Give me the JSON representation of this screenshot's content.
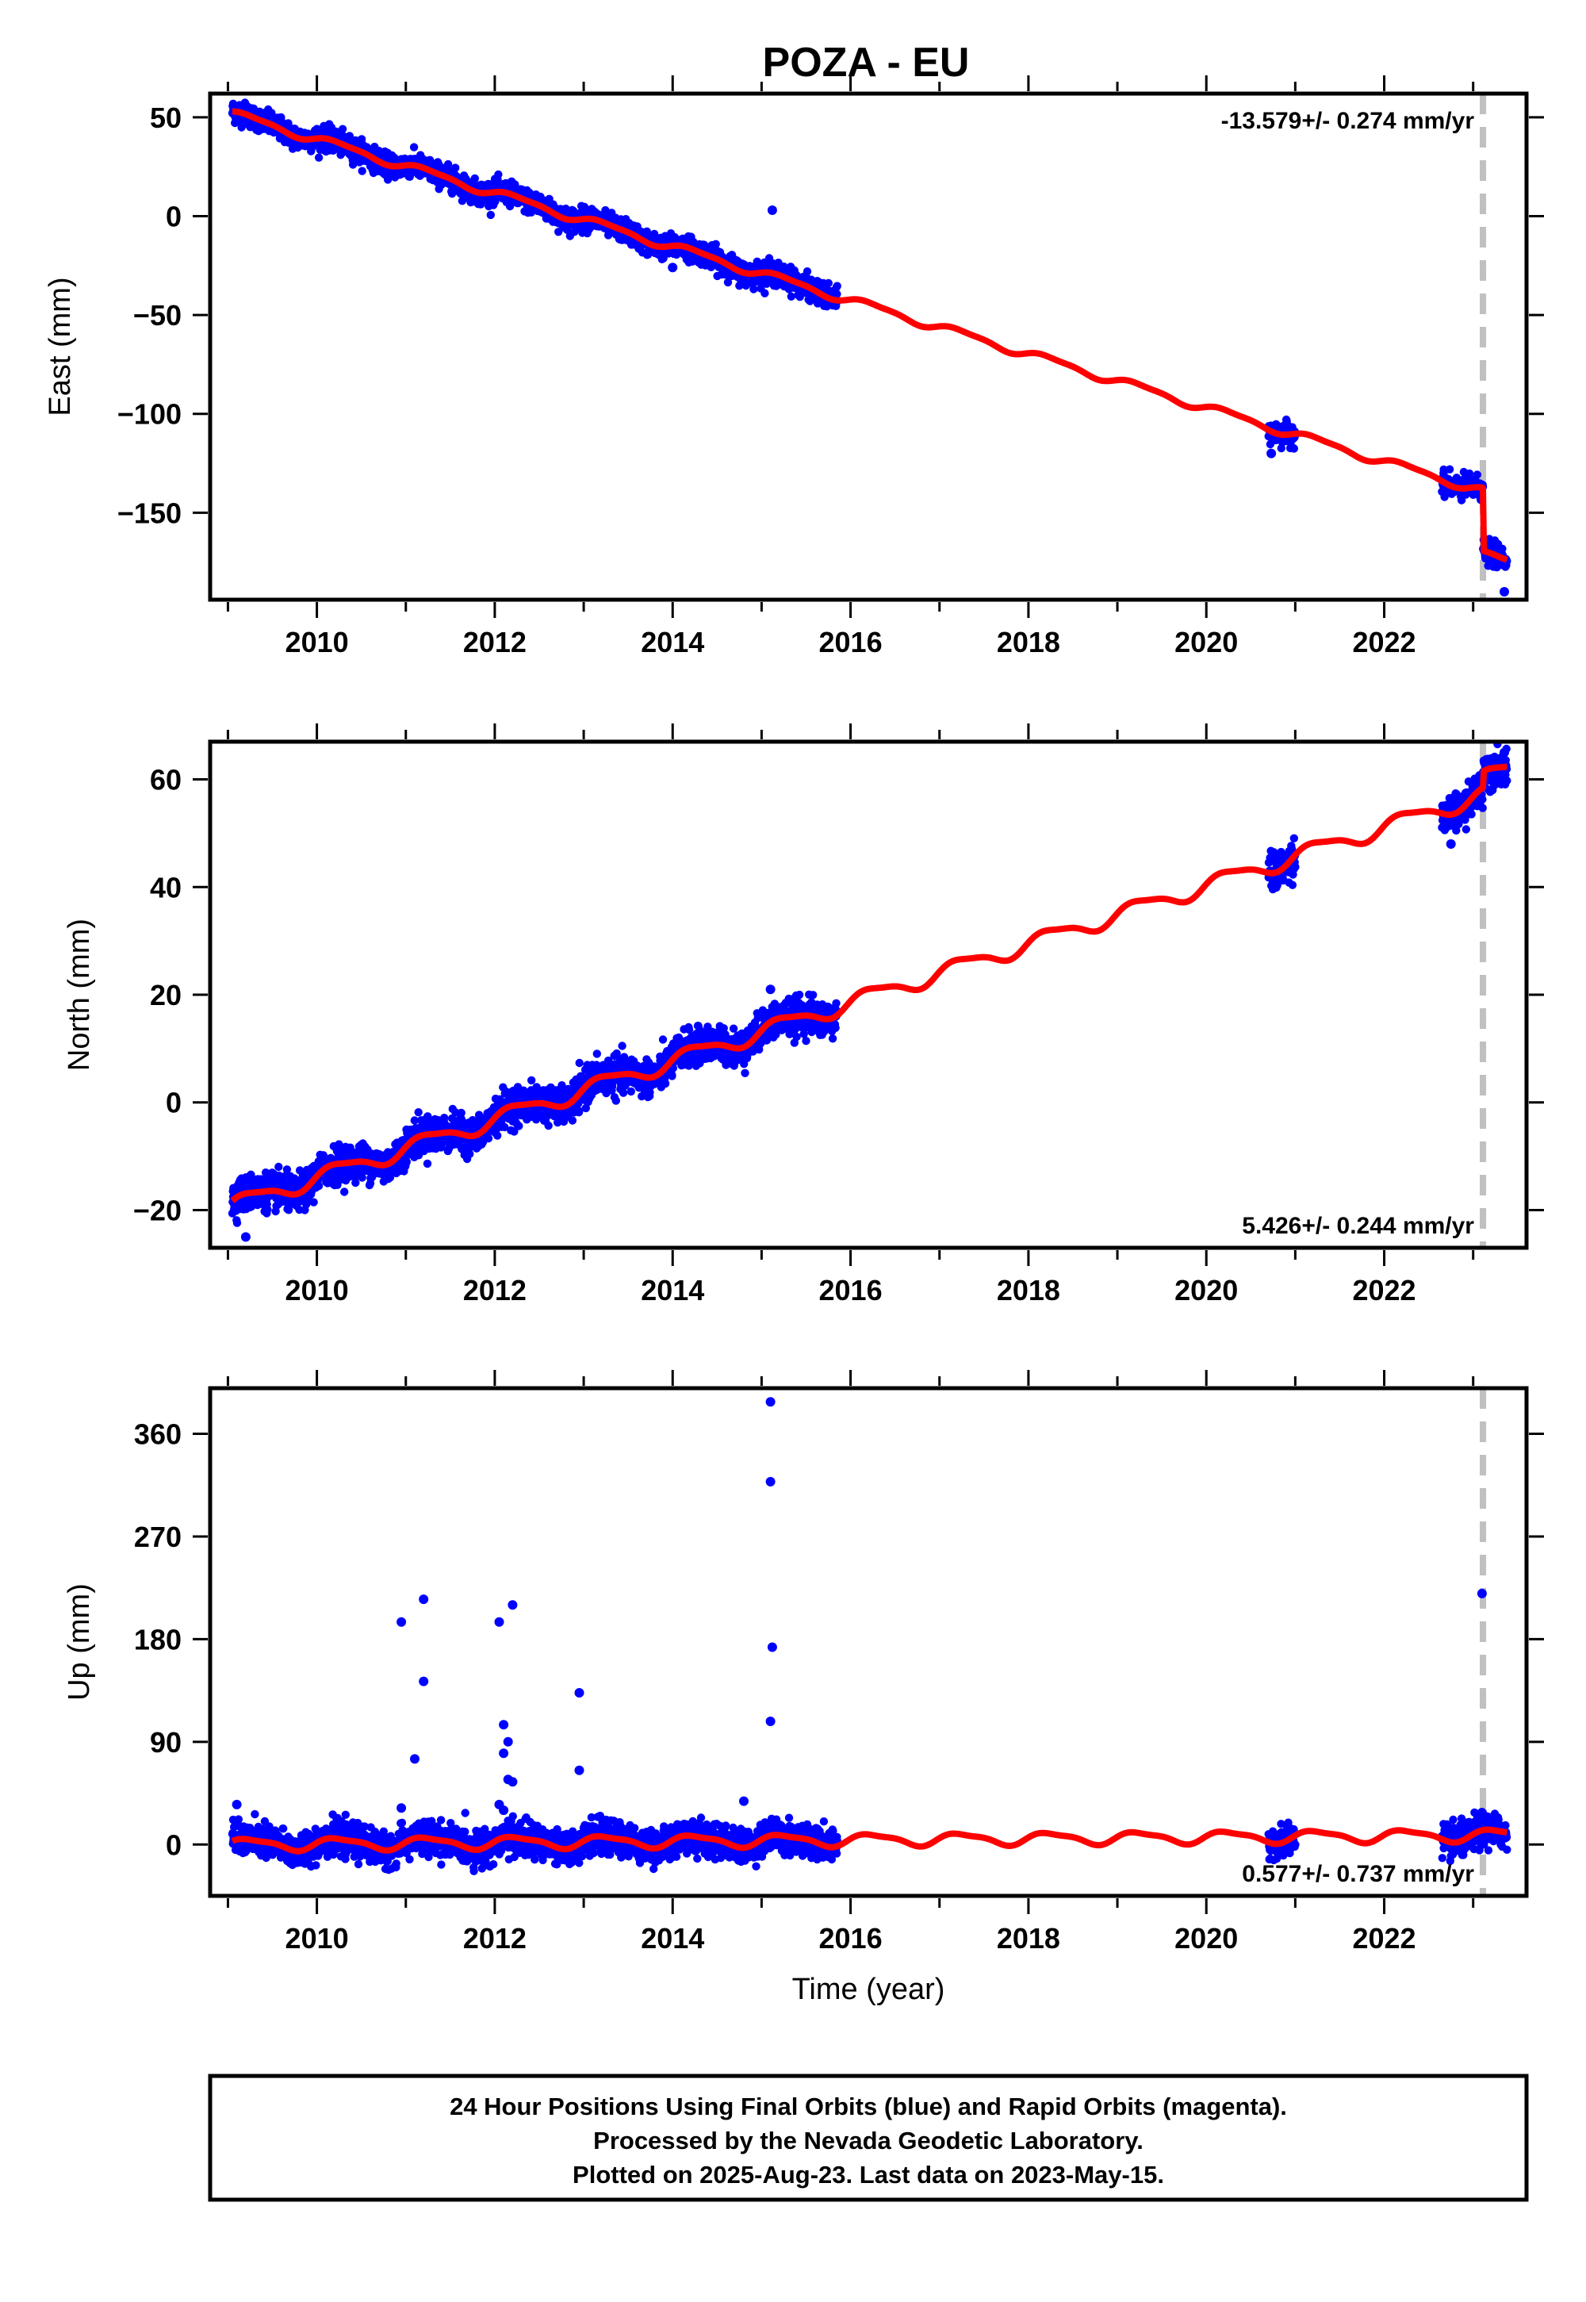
{
  "chart_data": [
    {
      "type": "scatter",
      "title": "POZA - EU",
      "ylabel": "East (mm)",
      "xlabel": "",
      "xlim": [
        2008.8,
        2023.6
      ],
      "ylim": [
        -194,
        62
      ],
      "yticks": [
        50,
        0,
        -50,
        -100,
        -150
      ],
      "ytick_labels": [
        "50",
        "0",
        "−50",
        "−100",
        "−150"
      ],
      "xticks": [
        2010,
        2012,
        2014,
        2016,
        2018,
        2020,
        2022
      ],
      "xtick_labels": [
        "2010",
        "2012",
        "2014",
        "2016",
        "2018",
        "2020",
        "2022"
      ],
      "rate_text": "-13.579+/- 0.274 mm/yr",
      "rate_position": "top-right",
      "step_marker_x": 2023.11,
      "observation_segments": [
        {
          "x_start": 2009.05,
          "x_end": 2015.85
        },
        {
          "x_start": 2020.7,
          "x_end": 2021.0
        },
        {
          "x_start": 2022.65,
          "x_end": 2023.38
        }
      ],
      "observation_outliers": [
        {
          "x": 2015.12,
          "y": 3
        },
        {
          "x": 2014.0,
          "y": -26
        },
        {
          "x": 2020.73,
          "y": -120
        },
        {
          "x": 2023.35,
          "y": -190
        }
      ],
      "model_linear": {
        "slope_mm_per_yr": -13.579,
        "intercept_at_2009": 52.5
      },
      "model_seasonal": {
        "annual_amplitude_mm": 1.9,
        "semiannual_amplitude_mm": 0.6
      },
      "model_steps": [
        {
          "x": 2023.11,
          "offset_mm": -32
        }
      ],
      "observation_scatter_mm": 2.8
    },
    {
      "type": "scatter",
      "title": "",
      "ylabel": "North (mm)",
      "xlabel": "",
      "xlim": [
        2008.8,
        2023.6
      ],
      "ylim": [
        -27,
        67
      ],
      "yticks": [
        60,
        40,
        20,
        0,
        -20
      ],
      "ytick_labels": [
        "60",
        "40",
        "20",
        "0",
        "−20"
      ],
      "xticks": [
        2010,
        2012,
        2014,
        2016,
        2018,
        2020,
        2022
      ],
      "xtick_labels": [
        "2010",
        "2012",
        "2014",
        "2016",
        "2018",
        "2020",
        "2022"
      ],
      "rate_text": "5.426+/- 0.244 mm/yr",
      "rate_position": "bottom-right",
      "step_marker_x": 2023.11,
      "observation_segments": [
        {
          "x_start": 2009.05,
          "x_end": 2015.85
        },
        {
          "x_start": 2020.7,
          "x_end": 2021.0
        },
        {
          "x_start": 2022.65,
          "x_end": 2023.38
        }
      ],
      "observation_outliers": [
        {
          "x": 2009.2,
          "y": -25
        },
        {
          "x": 2015.1,
          "y": 21
        },
        {
          "x": 2023.35,
          "y": 65
        },
        {
          "x": 2022.75,
          "y": 48
        }
      ],
      "model_linear": {
        "slope_mm_per_yr": 5.426,
        "intercept_at_2009": -19.4
      },
      "model_seasonal": {
        "annual_amplitude_mm": 1.5,
        "semiannual_amplitude_mm": 0.4
      },
      "model_steps": [
        {
          "x": 2023.11,
          "offset_mm": 3
        }
      ],
      "observation_scatter_mm": 1.6
    },
    {
      "type": "scatter",
      "title": "",
      "ylabel": "Up (mm)",
      "xlabel": "Time (year)",
      "xlim": [
        2008.8,
        2023.6
      ],
      "ylim": [
        -45,
        400
      ],
      "yticks": [
        360,
        270,
        180,
        90,
        0
      ],
      "ytick_labels": [
        "360",
        "270",
        "180",
        "90",
        "0"
      ],
      "xticks": [
        2010,
        2012,
        2014,
        2016,
        2018,
        2020,
        2022
      ],
      "xtick_labels": [
        "2010",
        "2012",
        "2014",
        "2016",
        "2018",
        "2020",
        "2022"
      ],
      "rate_text": "0.577+/- 0.737 mm/yr",
      "rate_position": "bottom-right",
      "step_marker_x": 2023.11,
      "observation_segments": [
        {
          "x_start": 2009.05,
          "x_end": 2015.85
        },
        {
          "x_start": 2020.7,
          "x_end": 2021.0
        },
        {
          "x_start": 2022.65,
          "x_end": 2023.38
        }
      ],
      "observation_outliers": [
        {
          "x": 2010.95,
          "y": 195
        },
        {
          "x": 2011.2,
          "y": 215
        },
        {
          "x": 2011.2,
          "y": 143
        },
        {
          "x": 2011.1,
          "y": 75
        },
        {
          "x": 2010.95,
          "y": 32
        },
        {
          "x": 2012.05,
          "y": 195
        },
        {
          "x": 2012.2,
          "y": 210
        },
        {
          "x": 2012.1,
          "y": 105
        },
        {
          "x": 2012.1,
          "y": 80
        },
        {
          "x": 2012.15,
          "y": 90
        },
        {
          "x": 2012.15,
          "y": 57
        },
        {
          "x": 2012.2,
          "y": 55
        },
        {
          "x": 2012.05,
          "y": 35
        },
        {
          "x": 2012.1,
          "y": 30
        },
        {
          "x": 2012.95,
          "y": 133
        },
        {
          "x": 2012.95,
          "y": 65
        },
        {
          "x": 2015.1,
          "y": 388
        },
        {
          "x": 2015.1,
          "y": 318
        },
        {
          "x": 2015.12,
          "y": 173
        },
        {
          "x": 2015.1,
          "y": 108
        },
        {
          "x": 2014.8,
          "y": 38
        },
        {
          "x": 2009.1,
          "y": 35
        },
        {
          "x": 2023.1,
          "y": 220
        },
        {
          "x": 2023.1,
          "y": 28
        }
      ],
      "model_linear": {
        "slope_mm_per_yr": 0.577,
        "intercept_at_2009": 0.0
      },
      "model_seasonal": {
        "annual_amplitude_mm": 5.0,
        "semiannual_amplitude_mm": 1.5
      },
      "model_steps": [],
      "observation_scatter_mm": 7.0
    }
  ],
  "footer": {
    "line1": "24 Hour Positions Using Final Orbits (blue) and Rapid Orbits (magenta).",
    "line2": "Processed by the Nevada Geodetic Laboratory.",
    "line3": "Plotted on 2025-Aug-23. Last data on 2023-May-15."
  },
  "colors": {
    "observations": "#0000ff",
    "model": "#ff0000",
    "step_marker": "#c0c0c0",
    "frame": "#000000"
  }
}
